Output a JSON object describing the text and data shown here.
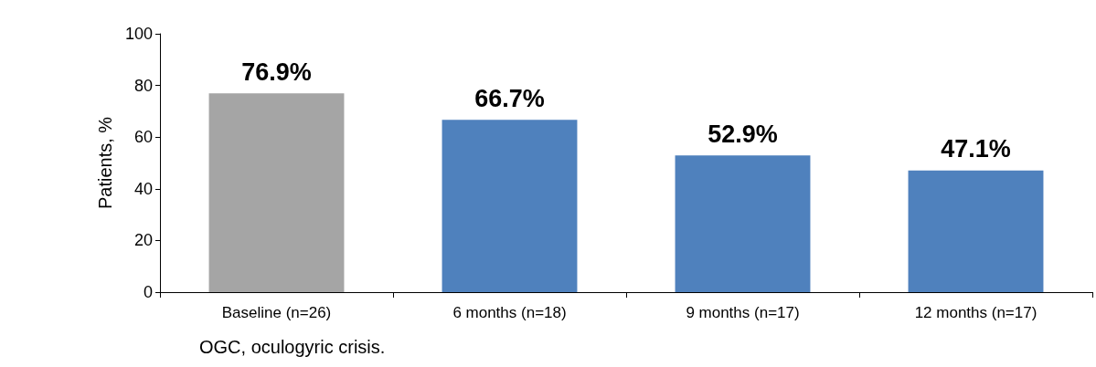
{
  "chart_data": {
    "type": "bar",
    "ylabel": "Patients, %",
    "categories": [
      "Baseline (n=26)",
      "6 months (n=18)",
      "9 months (n=17)",
      "12 months (n=17)"
    ],
    "values": [
      76.9,
      66.7,
      52.9,
      47.1
    ],
    "colors": [
      "#a5a5a5",
      "#4f81bd",
      "#4f81bd",
      "#4f81bd"
    ],
    "value_labels": [
      "76.9%",
      "66.7%",
      "52.9%",
      "47.1%"
    ],
    "ylim": [
      0,
      100
    ],
    "yticks": [
      0,
      20,
      40,
      60,
      80,
      100
    ],
    "grid": false,
    "annotations": [
      "OGC, oculogyric crisis."
    ]
  }
}
